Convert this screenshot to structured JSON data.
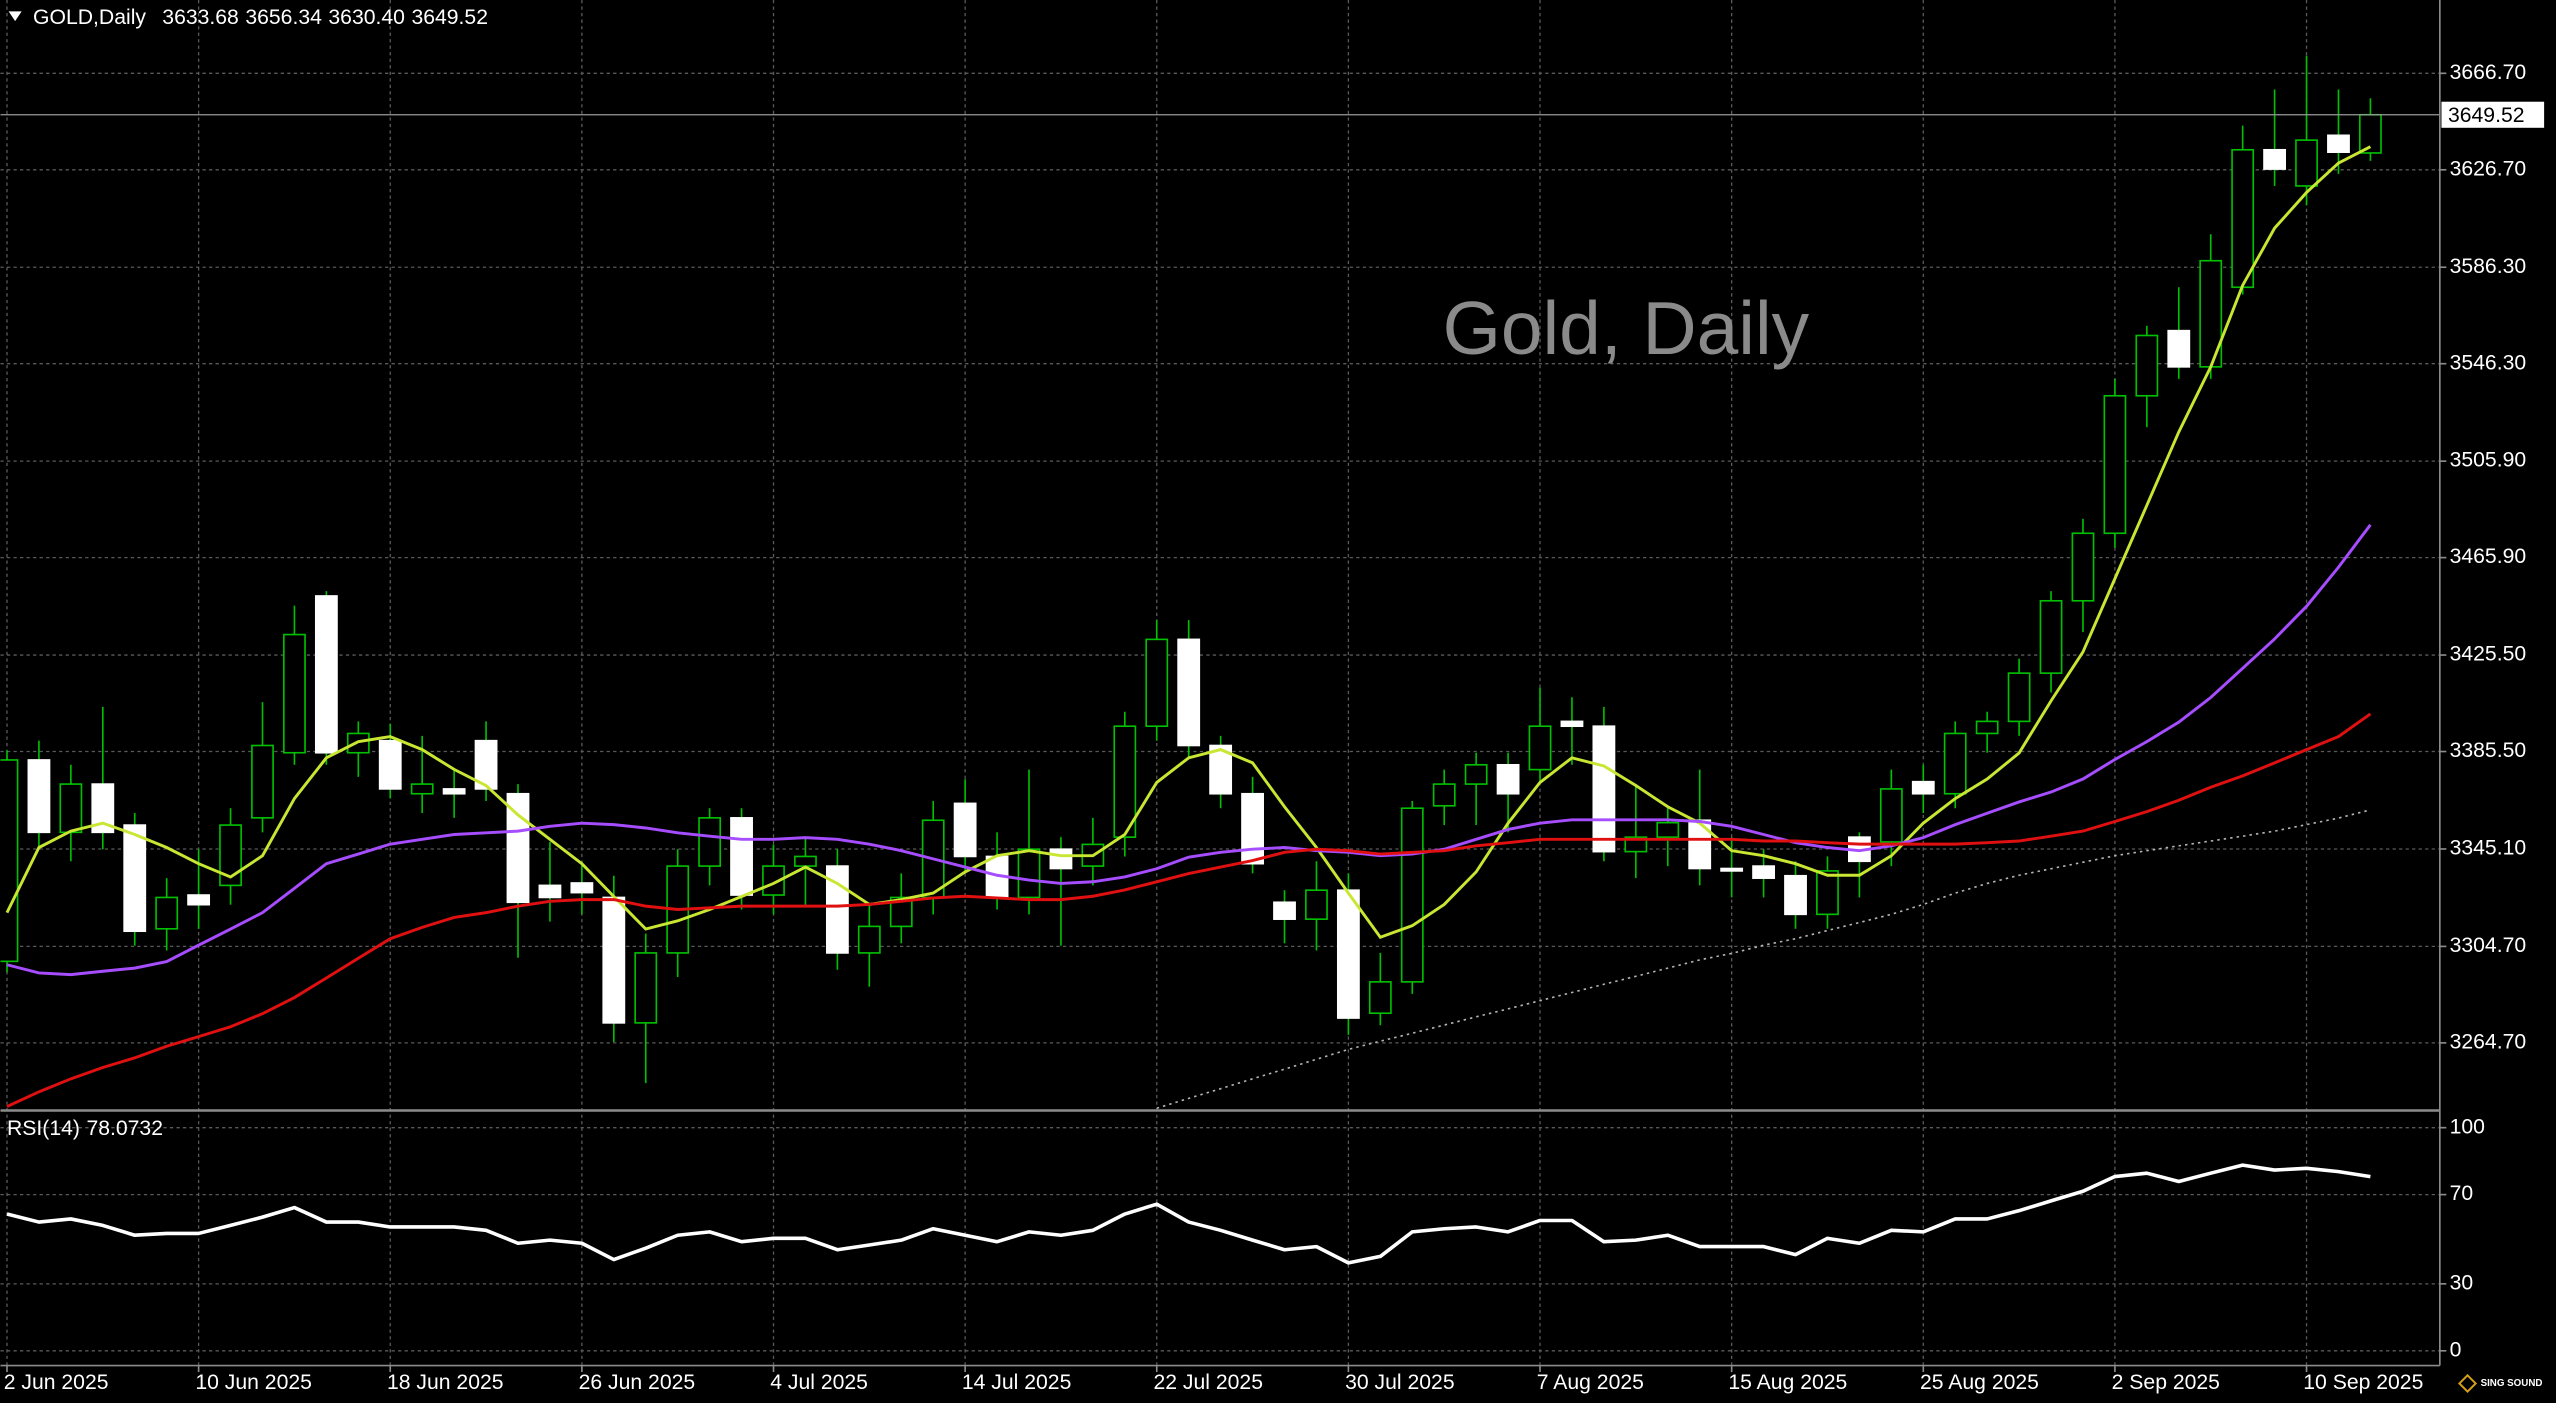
{
  "chart_data": [
    {
      "type": "candlestick",
      "symbol": "GOLD,Daily",
      "ohlc_labels": [
        "3633.68",
        "3656.34",
        "3630.40",
        "3649.52"
      ],
      "title": "Gold, Daily",
      "logo": "SING SOUND",
      "categories": [
        "2 Jun 2025",
        null,
        null,
        null,
        null,
        null,
        "10 Jun 2025",
        null,
        null,
        null,
        null,
        null,
        "18 Jun 2025",
        null,
        null,
        null,
        null,
        null,
        "26 Jun 2025",
        null,
        null,
        null,
        null,
        null,
        "4 Jul 2025",
        null,
        null,
        null,
        null,
        null,
        "14 Jul 2025",
        null,
        null,
        null,
        null,
        null,
        "22 Jul 2025",
        null,
        null,
        null,
        null,
        null,
        "30 Jul 2025",
        null,
        null,
        null,
        null,
        null,
        "7 Aug 2025",
        null,
        null,
        null,
        null,
        null,
        "15 Aug 2025",
        null,
        null,
        null,
        null,
        null,
        "25 Aug 2025",
        null,
        null,
        null,
        null,
        null,
        "2 Sep 2025",
        null,
        null,
        null,
        null,
        null,
        "10 Sep 2025",
        null,
        null
      ],
      "open": [
        3298.5,
        3382,
        3352,
        3372,
        3355,
        3312,
        3326,
        3330,
        3358,
        3385,
        3450,
        3385,
        3390,
        3368,
        3370,
        3390,
        3368,
        3330,
        3331,
        3325,
        3273,
        3302,
        3338,
        3358,
        3326,
        3338,
        3338,
        3302,
        3313,
        3325,
        3364,
        3342,
        3325,
        3345,
        3338,
        3350,
        3396,
        3432,
        3388,
        3368,
        3323,
        3316,
        3328,
        3277,
        3290,
        3363,
        3372,
        3380,
        3378,
        3398,
        3396,
        3344,
        3350,
        3357,
        3337,
        3338,
        3334,
        3318,
        3350,
        3348,
        3373,
        3368,
        3393,
        3398,
        3418,
        3448,
        3476,
        3533,
        3560,
        3545,
        3578,
        3635,
        3620,
        3641,
        3633.68
      ],
      "high": [
        3386,
        3390,
        3380,
        3404,
        3360,
        3333,
        3345,
        3362,
        3406,
        3446,
        3452,
        3398,
        3397,
        3392,
        3378,
        3398,
        3372,
        3348,
        3340,
        3334,
        3310,
        3345,
        3362,
        3362,
        3347,
        3350,
        3345,
        3322,
        3335,
        3365,
        3374,
        3352,
        3378,
        3350,
        3358,
        3402,
        3440,
        3440,
        3392,
        3375,
        3328,
        3340,
        3335,
        3302,
        3365,
        3378,
        3385,
        3385,
        3412,
        3408,
        3404,
        3372,
        3362,
        3378,
        3350,
        3345,
        3340,
        3342,
        3352,
        3378,
        3380,
        3398,
        3402,
        3424,
        3452,
        3482,
        3540,
        3562,
        3578,
        3600,
        3645,
        3660,
        3674,
        3660,
        3656.34
      ],
      "low": [
        3294,
        3346,
        3340,
        3345,
        3305,
        3303,
        3312,
        3322,
        3352,
        3380,
        3380,
        3375,
        3366,
        3360,
        3358,
        3365,
        3300,
        3315,
        3318,
        3265,
        3248,
        3292,
        3330,
        3320,
        3318,
        3322,
        3295,
        3288,
        3306,
        3318,
        3335,
        3320,
        3318,
        3305,
        3330,
        3342,
        3390,
        3383,
        3362,
        3335,
        3306,
        3303,
        3268,
        3272,
        3285,
        3355,
        3355,
        3352,
        3372,
        3380,
        3340,
        3333,
        3338,
        3330,
        3325,
        3325,
        3312,
        3312,
        3325,
        3338,
        3360,
        3362,
        3385,
        3392,
        3410,
        3435,
        3470,
        3520,
        3540,
        3540,
        3575,
        3620,
        3612,
        3625,
        3630.4
      ],
      "close": [
        3382,
        3352,
        3372,
        3352,
        3311,
        3325,
        3322,
        3355,
        3388,
        3434,
        3385,
        3393,
        3370,
        3372,
        3368,
        3370,
        3323,
        3325,
        3327,
        3273,
        3302,
        3338,
        3358,
        3326,
        3338,
        3342,
        3302,
        3313,
        3325,
        3357,
        3342,
        3325,
        3345,
        3337,
        3347,
        3396,
        3432,
        3388,
        3368,
        3339,
        3316,
        3328,
        3275,
        3290,
        3362,
        3372,
        3380,
        3368,
        3396,
        3396,
        3344,
        3350,
        3356,
        3337,
        3336,
        3333,
        3318,
        3336,
        3340,
        3370,
        3368,
        3393,
        3398,
        3418,
        3448,
        3476,
        3533,
        3558,
        3545,
        3589,
        3635,
        3627,
        3639,
        3634,
        3649.52
      ],
      "up_color": "#00c000",
      "down_color": "#ffffff",
      "series": [
        {
          "color": "#c8e632",
          "style": "solid",
          "values": [
            3318.7,
            3345.7,
            3352.5,
            3355.8,
            3351.1,
            3345.7,
            3339.0,
            3333.5,
            3342.3,
            3366.0,
            3382.9,
            3389.6,
            3391.7,
            3386.3,
            3378.1,
            3371.4,
            3359.2,
            3349.1,
            3339.0,
            3325.4,
            3311.9,
            3315.3,
            3320.0,
            3325.4,
            3330.8,
            3337.6,
            3330.8,
            3322.1,
            3324.1,
            3326.8,
            3335.6,
            3342.3,
            3344.4,
            3342.3,
            3342.3,
            3351.1,
            3372.7,
            3382.9,
            3386.3,
            3380.8,
            3362.6,
            3345.7,
            3326.8,
            3308.5,
            3313.3,
            3322.1,
            3335.6,
            3355.8,
            3372.7,
            3382.9,
            3379.5,
            3371.4,
            3362.6,
            3355.8,
            3344.4,
            3342.3,
            3339.0,
            3334.2,
            3334.2,
            3342.3,
            3355.8,
            3366.0,
            3374.1,
            3384.9,
            3406.5,
            3426.8,
            3457.2,
            3487.6,
            3518.0,
            3545.0,
            3578.8,
            3602.5,
            3617.3,
            3629.5,
            3636.3
          ]
        },
        {
          "color": "#a64dff",
          "style": "solid",
          "values": [
            3297.1,
            3293.7,
            3293.0,
            3294.4,
            3295.7,
            3298.4,
            3305.2,
            3311.9,
            3318.7,
            3328.8,
            3339.0,
            3343.0,
            3347.1,
            3349.1,
            3351.1,
            3351.8,
            3352.5,
            3354.5,
            3355.8,
            3355.2,
            3353.8,
            3351.8,
            3350.4,
            3349.1,
            3349.1,
            3349.8,
            3349.1,
            3347.1,
            3344.4,
            3341.0,
            3337.6,
            3334.2,
            3332.2,
            3330.8,
            3331.5,
            3333.5,
            3336.9,
            3341.7,
            3343.7,
            3345.0,
            3345.7,
            3344.4,
            3343.7,
            3342.3,
            3343.0,
            3345.0,
            3349.1,
            3353.2,
            3355.8,
            3357.2,
            3357.2,
            3357.2,
            3357.2,
            3356.5,
            3354.5,
            3351.1,
            3347.7,
            3345.7,
            3344.4,
            3346.4,
            3349.8,
            3355.2,
            3359.9,
            3364.6,
            3368.7,
            3374.1,
            3382.2,
            3389.6,
            3397.7,
            3407.9,
            3420.0,
            3432.2,
            3445.7,
            3461.9,
            3479.5
          ]
        },
        {
          "color": "#e01010",
          "style": "solid",
          "values": [
            3238.3,
            3244.4,
            3249.8,
            3254.5,
            3258.5,
            3263.3,
            3267.3,
            3271.4,
            3276.8,
            3283.5,
            3291.6,
            3299.8,
            3307.9,
            3312.6,
            3316.7,
            3318.7,
            3321.4,
            3323.4,
            3324.1,
            3324.1,
            3321.4,
            3320.0,
            3320.7,
            3321.4,
            3321.4,
            3321.4,
            3321.4,
            3322.1,
            3323.4,
            3324.8,
            3325.5,
            3324.8,
            3324.1,
            3324.1,
            3325.5,
            3328.1,
            3331.5,
            3334.9,
            3337.6,
            3340.3,
            3343.7,
            3345.0,
            3344.4,
            3343.0,
            3343.7,
            3344.4,
            3346.4,
            3347.7,
            3349.1,
            3349.1,
            3349.1,
            3349.1,
            3349.1,
            3349.1,
            3349.1,
            3348.4,
            3348.4,
            3347.7,
            3347.1,
            3347.1,
            3347.1,
            3347.1,
            3347.7,
            3348.4,
            3350.4,
            3352.5,
            3356.5,
            3360.6,
            3365.3,
            3370.7,
            3375.4,
            3380.8,
            3386.3,
            3391.7,
            3401.1
          ]
        },
        {
          "color": "#b4b4b4",
          "style": "dotted",
          "values": [
            null,
            null,
            null,
            null,
            null,
            null,
            null,
            null,
            null,
            null,
            null,
            null,
            null,
            null,
            null,
            null,
            null,
            null,
            null,
            null,
            null,
            null,
            null,
            null,
            null,
            null,
            null,
            null,
            null,
            null,
            null,
            null,
            null,
            null,
            null,
            null,
            3237.6,
            3241.7,
            3245.7,
            3249.8,
            3253.8,
            3257.9,
            3262.0,
            3265.4,
            3268.7,
            3272.1,
            3275.5,
            3278.8,
            3282.2,
            3285.6,
            3289.0,
            3292.3,
            3295.7,
            3299.1,
            3301.8,
            3305.2,
            3307.9,
            3311.3,
            3314.6,
            3318.0,
            3322.1,
            3326.8,
            3330.8,
            3334.2,
            3336.9,
            3339.6,
            3342.3,
            3344.4,
            3346.4,
            3348.4,
            3350.4,
            3352.5,
            3355.2,
            3357.9,
            3361.3
          ]
        }
      ],
      "ylim": [
        3237.0,
        3697.1
      ],
      "yticks": [
        {
          "value": 3666.7,
          "label": "3666.70"
        },
        {
          "value": 3626.7,
          "label": "3626.70"
        },
        {
          "value": 3586.3,
          "label": "3586.30"
        },
        {
          "value": 3546.3,
          "label": "3546.30"
        },
        {
          "value": 3505.9,
          "label": "3505.90"
        },
        {
          "value": 3465.9,
          "label": "3465.90"
        },
        {
          "value": 3425.5,
          "label": "3425.50"
        },
        {
          "value": 3385.5,
          "label": "3385.50"
        },
        {
          "value": 3345.1,
          "label": "3345.10"
        },
        {
          "value": 3304.7,
          "label": "3304.70"
        },
        {
          "value": 3264.7,
          "label": "3264.70"
        }
      ],
      "grid": true
    },
    {
      "type": "line",
      "title": "RSI(14)",
      "series": [
        {
          "color": "#ffffff",
          "values": [
            61.3,
            57.7,
            59.1,
            56.2,
            51.8,
            52.6,
            52.6,
            56.2,
            59.9,
            64.2,
            57.7,
            57.7,
            55.5,
            55.5,
            55.5,
            54.0,
            48.2,
            49.6,
            48.2,
            40.9,
            46.0,
            51.8,
            53.3,
            48.9,
            50.4,
            50.4,
            45.3,
            47.4,
            49.6,
            54.7,
            51.8,
            48.9,
            53.3,
            51.8,
            54.0,
            61.3,
            65.7,
            57.7,
            54.0,
            49.6,
            45.3,
            46.7,
            39.4,
            42.3,
            53.3,
            54.7,
            55.5,
            53.3,
            58.4,
            58.4,
            48.9,
            49.6,
            51.8,
            46.7,
            46.7,
            46.7,
            43.1,
            50.4,
            48.2,
            54.0,
            53.3,
            59.1,
            59.1,
            62.8,
            67.2,
            71.5,
            78.1,
            79.6,
            75.9,
            79.6,
            83.2,
            81.0,
            81.8,
            80.3,
            78.0732
          ]
        }
      ],
      "ylim": [
        -6.6,
        106.6
      ],
      "yticks": [
        100,
        70,
        30,
        0
      ],
      "grid": true
    }
  ]
}
